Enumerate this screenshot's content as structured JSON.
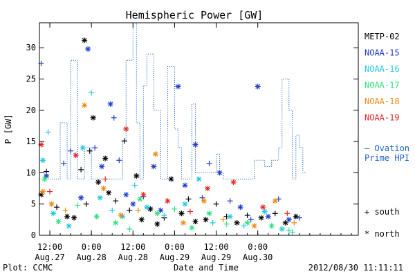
{
  "chart_data": {
    "type": "scatter",
    "title": "Hemispheric Power [GW]",
    "ylabel": "P [GW]",
    "xlabel": "Date and Time",
    "ylim": [
      0,
      34
    ],
    "yticks": [
      0,
      5,
      10,
      15,
      20,
      25,
      30
    ],
    "xlim": [
      "2012-08-27 09:00",
      "2012-08-31 05:00"
    ],
    "xticks": [
      {
        "t": "2012-08-27 12:00",
        "l1": "12:00",
        "l2": "Aug.27"
      },
      {
        "t": "2012-08-28 00:00",
        "l1": "0:00",
        "l2": "Aug.28"
      },
      {
        "t": "2012-08-28 12:00",
        "l1": "12:00",
        "l2": "Aug.28"
      },
      {
        "t": "2012-08-29 00:00",
        "l1": "0:00",
        "l2": "Aug.29"
      },
      {
        "t": "2012-08-29 12:00",
        "l1": "12:00",
        "l2": "Aug.29"
      },
      {
        "t": "2012-08-30 00:00",
        "l1": "0:00",
        "l2": "Aug.30"
      }
    ],
    "grid": false,
    "legend": {
      "placement": "right",
      "satellites": [
        {
          "name": "METP-02",
          "color": "#000000"
        },
        {
          "name": "NOAA-15",
          "color": "#1e3cc8"
        },
        {
          "name": "NOAA-16",
          "color": "#22c8e0"
        },
        {
          "name": "NOAA-17",
          "color": "#30e080"
        },
        {
          "name": "NOAA-18",
          "color": "#f08a14"
        },
        {
          "name": "NOAA-19",
          "color": "#e02828"
        }
      ],
      "ovation_line1": "– Ovation",
      "ovation_line2": "Prime HPI",
      "south_label": "+ south",
      "north_label": "* north"
    },
    "ovation_color": "#1e64c8",
    "ovation_series": {
      "name": "Ovation Prime HPI",
      "style": "step-dotted",
      "points": [
        [
          "2012-08-27 09:00",
          9
        ],
        [
          "2012-08-27 15:00",
          18
        ],
        [
          "2012-08-27 17:00",
          9
        ],
        [
          "2012-08-27 18:00",
          28
        ],
        [
          "2012-08-27 20:00",
          9
        ],
        [
          "2012-08-27 22:00",
          14
        ],
        [
          "2012-08-28 00:00",
          9
        ],
        [
          "2012-08-28 09:00",
          15
        ],
        [
          "2012-08-28 10:00",
          28
        ],
        [
          "2012-08-28 12:00",
          34
        ],
        [
          "2012-08-28 13:00",
          18
        ],
        [
          "2012-08-28 14:00",
          9
        ],
        [
          "2012-08-28 15:00",
          24
        ],
        [
          "2012-08-28 16:00",
          29
        ],
        [
          "2012-08-28 18:00",
          20
        ],
        [
          "2012-08-28 20:00",
          9
        ],
        [
          "2012-08-28 22:00",
          27
        ],
        [
          "2012-08-29 00:00",
          17
        ],
        [
          "2012-08-29 01:00",
          14
        ],
        [
          "2012-08-29 02:00",
          9
        ],
        [
          "2012-08-29 05:00",
          21
        ],
        [
          "2012-08-29 06:00",
          10
        ],
        [
          "2012-08-29 12:00",
          13
        ],
        [
          "2012-08-29 13:00",
          10
        ],
        [
          "2012-08-29 14:00",
          9
        ],
        [
          "2012-08-29 23:00",
          12
        ],
        [
          "2012-08-30 02:00",
          11
        ],
        [
          "2012-08-30 04:00",
          12
        ],
        [
          "2012-08-30 06:00",
          14
        ],
        [
          "2012-08-30 07:00",
          25
        ],
        [
          "2012-08-30 09:00",
          20
        ],
        [
          "2012-08-30 10:00",
          9
        ],
        [
          "2012-08-30 11:00",
          16
        ],
        [
          "2012-08-30 12:00",
          14
        ],
        [
          "2012-08-30 13:00",
          10
        ],
        [
          "2012-08-30 14:00",
          10
        ]
      ]
    },
    "series": [
      {
        "name": "METP-02",
        "color": "#000000",
        "points": [
          [
            "2012-08-27 09:30",
            6.5,
            "n"
          ],
          [
            "2012-08-27 11:00",
            10.2,
            "s"
          ],
          [
            "2012-08-27 14:00",
            4.5,
            "s"
          ],
          [
            "2012-08-27 17:00",
            3.0,
            "n"
          ],
          [
            "2012-08-27 19:00",
            2.8,
            "n"
          ],
          [
            "2012-08-27 21:00",
            10.5,
            "s"
          ],
          [
            "2012-08-27 22:00",
            31.2,
            "n"
          ],
          [
            "2012-08-27 22:30",
            5.0,
            "s"
          ],
          [
            "2012-08-27 23:30",
            13.5,
            "s"
          ],
          [
            "2012-08-28 00:30",
            18.8,
            "n"
          ],
          [
            "2012-08-28 02:00",
            8.5,
            "n"
          ],
          [
            "2012-08-28 04:00",
            12.3,
            "n"
          ],
          [
            "2012-08-28 05:00",
            6.8,
            "n"
          ],
          [
            "2012-08-28 07:00",
            5.5,
            "s"
          ],
          [
            "2012-08-28 09:30",
            15.1,
            "s"
          ],
          [
            "2012-08-28 11:00",
            4.0,
            "s"
          ],
          [
            "2012-08-28 13:00",
            9.5,
            "n"
          ],
          [
            "2012-08-28 14:30",
            2.5,
            "n"
          ],
          [
            "2012-08-28 17:00",
            4.2,
            "n"
          ],
          [
            "2012-08-28 19:00",
            1.8,
            "n"
          ],
          [
            "2012-08-28 21:00",
            2.8,
            "s"
          ],
          [
            "2012-08-28 23:00",
            9.0,
            "n"
          ],
          [
            "2012-08-29 02:00",
            3.5,
            "n"
          ],
          [
            "2012-08-29 04:00",
            5.8,
            "s"
          ],
          [
            "2012-08-29 06:00",
            2.2,
            "n"
          ],
          [
            "2012-08-29 09:00",
            2.5,
            "n"
          ],
          [
            "2012-08-29 12:00",
            5.0,
            "s"
          ],
          [
            "2012-08-29 15:00",
            3.0,
            "s"
          ],
          [
            "2012-08-29 18:00",
            2.0,
            "n"
          ],
          [
            "2012-08-29 21:00",
            3.2,
            "s"
          ],
          [
            "2012-08-30 01:00",
            2.8,
            "n"
          ],
          [
            "2012-08-30 05:00",
            3.5,
            "s"
          ],
          [
            "2012-08-30 08:00",
            2.0,
            "n"
          ],
          [
            "2012-08-30 11:00",
            3.0,
            "n"
          ]
        ]
      },
      {
        "name": "NOAA-15",
        "color": "#1e3cc8",
        "points": [
          [
            "2012-08-27 09:30",
            27.5,
            "s"
          ],
          [
            "2012-08-27 11:00",
            9.5,
            "n"
          ],
          [
            "2012-08-27 16:00",
            11.5,
            "s"
          ],
          [
            "2012-08-27 18:00",
            13.5,
            "s"
          ],
          [
            "2012-08-27 21:00",
            6.0,
            "n"
          ],
          [
            "2012-08-27 23:00",
            29.8,
            "n"
          ],
          [
            "2012-08-28 01:00",
            14.0,
            "s"
          ],
          [
            "2012-08-28 03:00",
            11.0,
            "n"
          ],
          [
            "2012-08-28 05:30",
            21.0,
            "n"
          ],
          [
            "2012-08-28 06:30",
            18.8,
            "s"
          ],
          [
            "2012-08-28 08:00",
            12.0,
            "s"
          ],
          [
            "2012-08-28 10:00",
            6.5,
            "n"
          ],
          [
            "2012-08-28 12:00",
            5.0,
            "n"
          ],
          [
            "2012-08-28 15:00",
            6.2,
            "s"
          ],
          [
            "2012-08-28 18:00",
            11.0,
            "n"
          ],
          [
            "2012-08-28 20:00",
            4.0,
            "n"
          ],
          [
            "2012-08-29 01:00",
            23.8,
            "n"
          ],
          [
            "2012-08-29 03:00",
            8.0,
            "n"
          ],
          [
            "2012-08-29 06:00",
            14.5,
            "n"
          ],
          [
            "2012-08-29 08:00",
            6.0,
            "s"
          ],
          [
            "2012-08-29 10:00",
            11.5,
            "s"
          ],
          [
            "2012-08-29 13:00",
            10.0,
            "n"
          ],
          [
            "2012-08-29 16:00",
            5.5,
            "s"
          ],
          [
            "2012-08-29 19:00",
            4.5,
            "n"
          ],
          [
            "2012-08-29 22:00",
            2.5,
            "s"
          ],
          [
            "2012-08-30 00:00",
            23.8,
            "n"
          ],
          [
            "2012-08-30 03:00",
            3.0,
            "n"
          ],
          [
            "2012-08-30 06:00",
            5.8,
            "s"
          ],
          [
            "2012-08-30 09:00",
            2.5,
            "n"
          ],
          [
            "2012-08-30 12:00",
            2.8,
            "s"
          ]
        ]
      },
      {
        "name": "NOAA-16",
        "color": "#22c8e0",
        "points": [
          [
            "2012-08-27 10:00",
            12.0,
            "n"
          ],
          [
            "2012-08-27 11:30",
            16.5,
            "s"
          ],
          [
            "2012-08-27 13:00",
            3.5,
            "n"
          ],
          [
            "2012-08-27 17:30",
            1.5,
            "n"
          ],
          [
            "2012-08-27 21:30",
            14.0,
            "n"
          ],
          [
            "2012-08-28 00:00",
            22.8,
            "s"
          ],
          [
            "2012-08-28 02:30",
            6.0,
            "n"
          ],
          [
            "2012-08-28 06:00",
            4.0,
            "s"
          ],
          [
            "2012-08-28 09:00",
            3.0,
            "n"
          ],
          [
            "2012-08-28 12:30",
            8.0,
            "s"
          ],
          [
            "2012-08-28 16:00",
            4.5,
            "n"
          ],
          [
            "2012-08-28 21:00",
            3.2,
            "s"
          ],
          [
            "2012-08-29 03:00",
            5.0,
            "n"
          ],
          [
            "2012-08-29 07:00",
            9.0,
            "n"
          ],
          [
            "2012-08-29 11:00",
            2.0,
            "s"
          ],
          [
            "2012-08-29 16:00",
            3.0,
            "n"
          ],
          [
            "2012-08-29 20:00",
            1.5,
            "s"
          ],
          [
            "2012-08-30 02:00",
            3.8,
            "n"
          ],
          [
            "2012-08-30 07:00",
            1.0,
            "n"
          ],
          [
            "2012-08-30 10:00",
            0.5,
            "s"
          ]
        ]
      },
      {
        "name": "NOAA-17",
        "color": "#30e080",
        "points": [
          [
            "2012-08-27 10:30",
            9.0,
            "n"
          ],
          [
            "2012-08-27 14:30",
            2.2,
            "n"
          ],
          [
            "2012-08-27 20:00",
            4.8,
            "s"
          ],
          [
            "2012-08-28 01:30",
            3.0,
            "n"
          ],
          [
            "2012-08-28 07:00",
            2.0,
            "n"
          ],
          [
            "2012-08-28 11:00",
            1.0,
            "s"
          ],
          [
            "2012-08-28 14:00",
            5.8,
            "n"
          ],
          [
            "2012-08-28 19:00",
            3.5,
            "n"
          ],
          [
            "2012-08-29 00:00",
            4.2,
            "s"
          ],
          [
            "2012-08-29 05:00",
            1.2,
            "n"
          ],
          [
            "2012-08-29 10:00",
            3.5,
            "n"
          ],
          [
            "2012-08-29 15:00",
            1.8,
            "s"
          ],
          [
            "2012-08-29 21:00",
            2.0,
            "n"
          ],
          [
            "2012-08-30 04:00",
            1.5,
            "n"
          ],
          [
            "2012-08-30 09:00",
            0.8,
            "s"
          ]
        ]
      },
      {
        "name": "NOAA-18",
        "color": "#f08a14",
        "points": [
          [
            "2012-08-27 10:00",
            7.0,
            "n"
          ],
          [
            "2012-08-27 12:30",
            5.0,
            "n"
          ],
          [
            "2012-08-27 16:30",
            4.0,
            "s"
          ],
          [
            "2012-08-27 22:00",
            20.8,
            "n"
          ],
          [
            "2012-08-28 03:30",
            7.5,
            "n"
          ],
          [
            "2012-08-28 08:30",
            3.2,
            "n"
          ],
          [
            "2012-08-28 13:30",
            4.0,
            "s"
          ],
          [
            "2012-08-28 18:30",
            13.0,
            "n"
          ],
          [
            "2012-08-29 02:30",
            2.0,
            "n"
          ],
          [
            "2012-08-29 08:30",
            5.5,
            "n"
          ],
          [
            "2012-08-29 14:00",
            2.5,
            "s"
          ],
          [
            "2012-08-29 23:00",
            1.5,
            "n"
          ],
          [
            "2012-08-30 05:00",
            5.5,
            "n"
          ],
          [
            "2012-08-30 10:30",
            2.0,
            "s"
          ]
        ]
      },
      {
        "name": "NOAA-19",
        "color": "#e02828",
        "points": [
          [
            "2012-08-27 09:30",
            14.5,
            "n"
          ],
          [
            "2012-08-27 12:00",
            7.0,
            "s"
          ],
          [
            "2012-08-27 19:30",
            12.8,
            "n"
          ],
          [
            "2012-08-28 04:00",
            9.0,
            "s"
          ],
          [
            "2012-08-28 10:00",
            17.0,
            "n"
          ],
          [
            "2012-08-28 15:00",
            6.5,
            "n"
          ],
          [
            "2012-08-28 22:00",
            5.5,
            "n"
          ],
          [
            "2012-08-29 04:30",
            3.8,
            "s"
          ],
          [
            "2012-08-29 09:30",
            7.5,
            "n"
          ],
          [
            "2012-08-29 17:00",
            8.5,
            "n"
          ],
          [
            "2012-08-30 01:30",
            4.5,
            "n"
          ],
          [
            "2012-08-30 08:30",
            3.5,
            "s"
          ]
        ]
      }
    ]
  },
  "footer": {
    "plot_credit": "Plot: CCMC",
    "timestamp": "2012/08/30 11:11:11"
  }
}
